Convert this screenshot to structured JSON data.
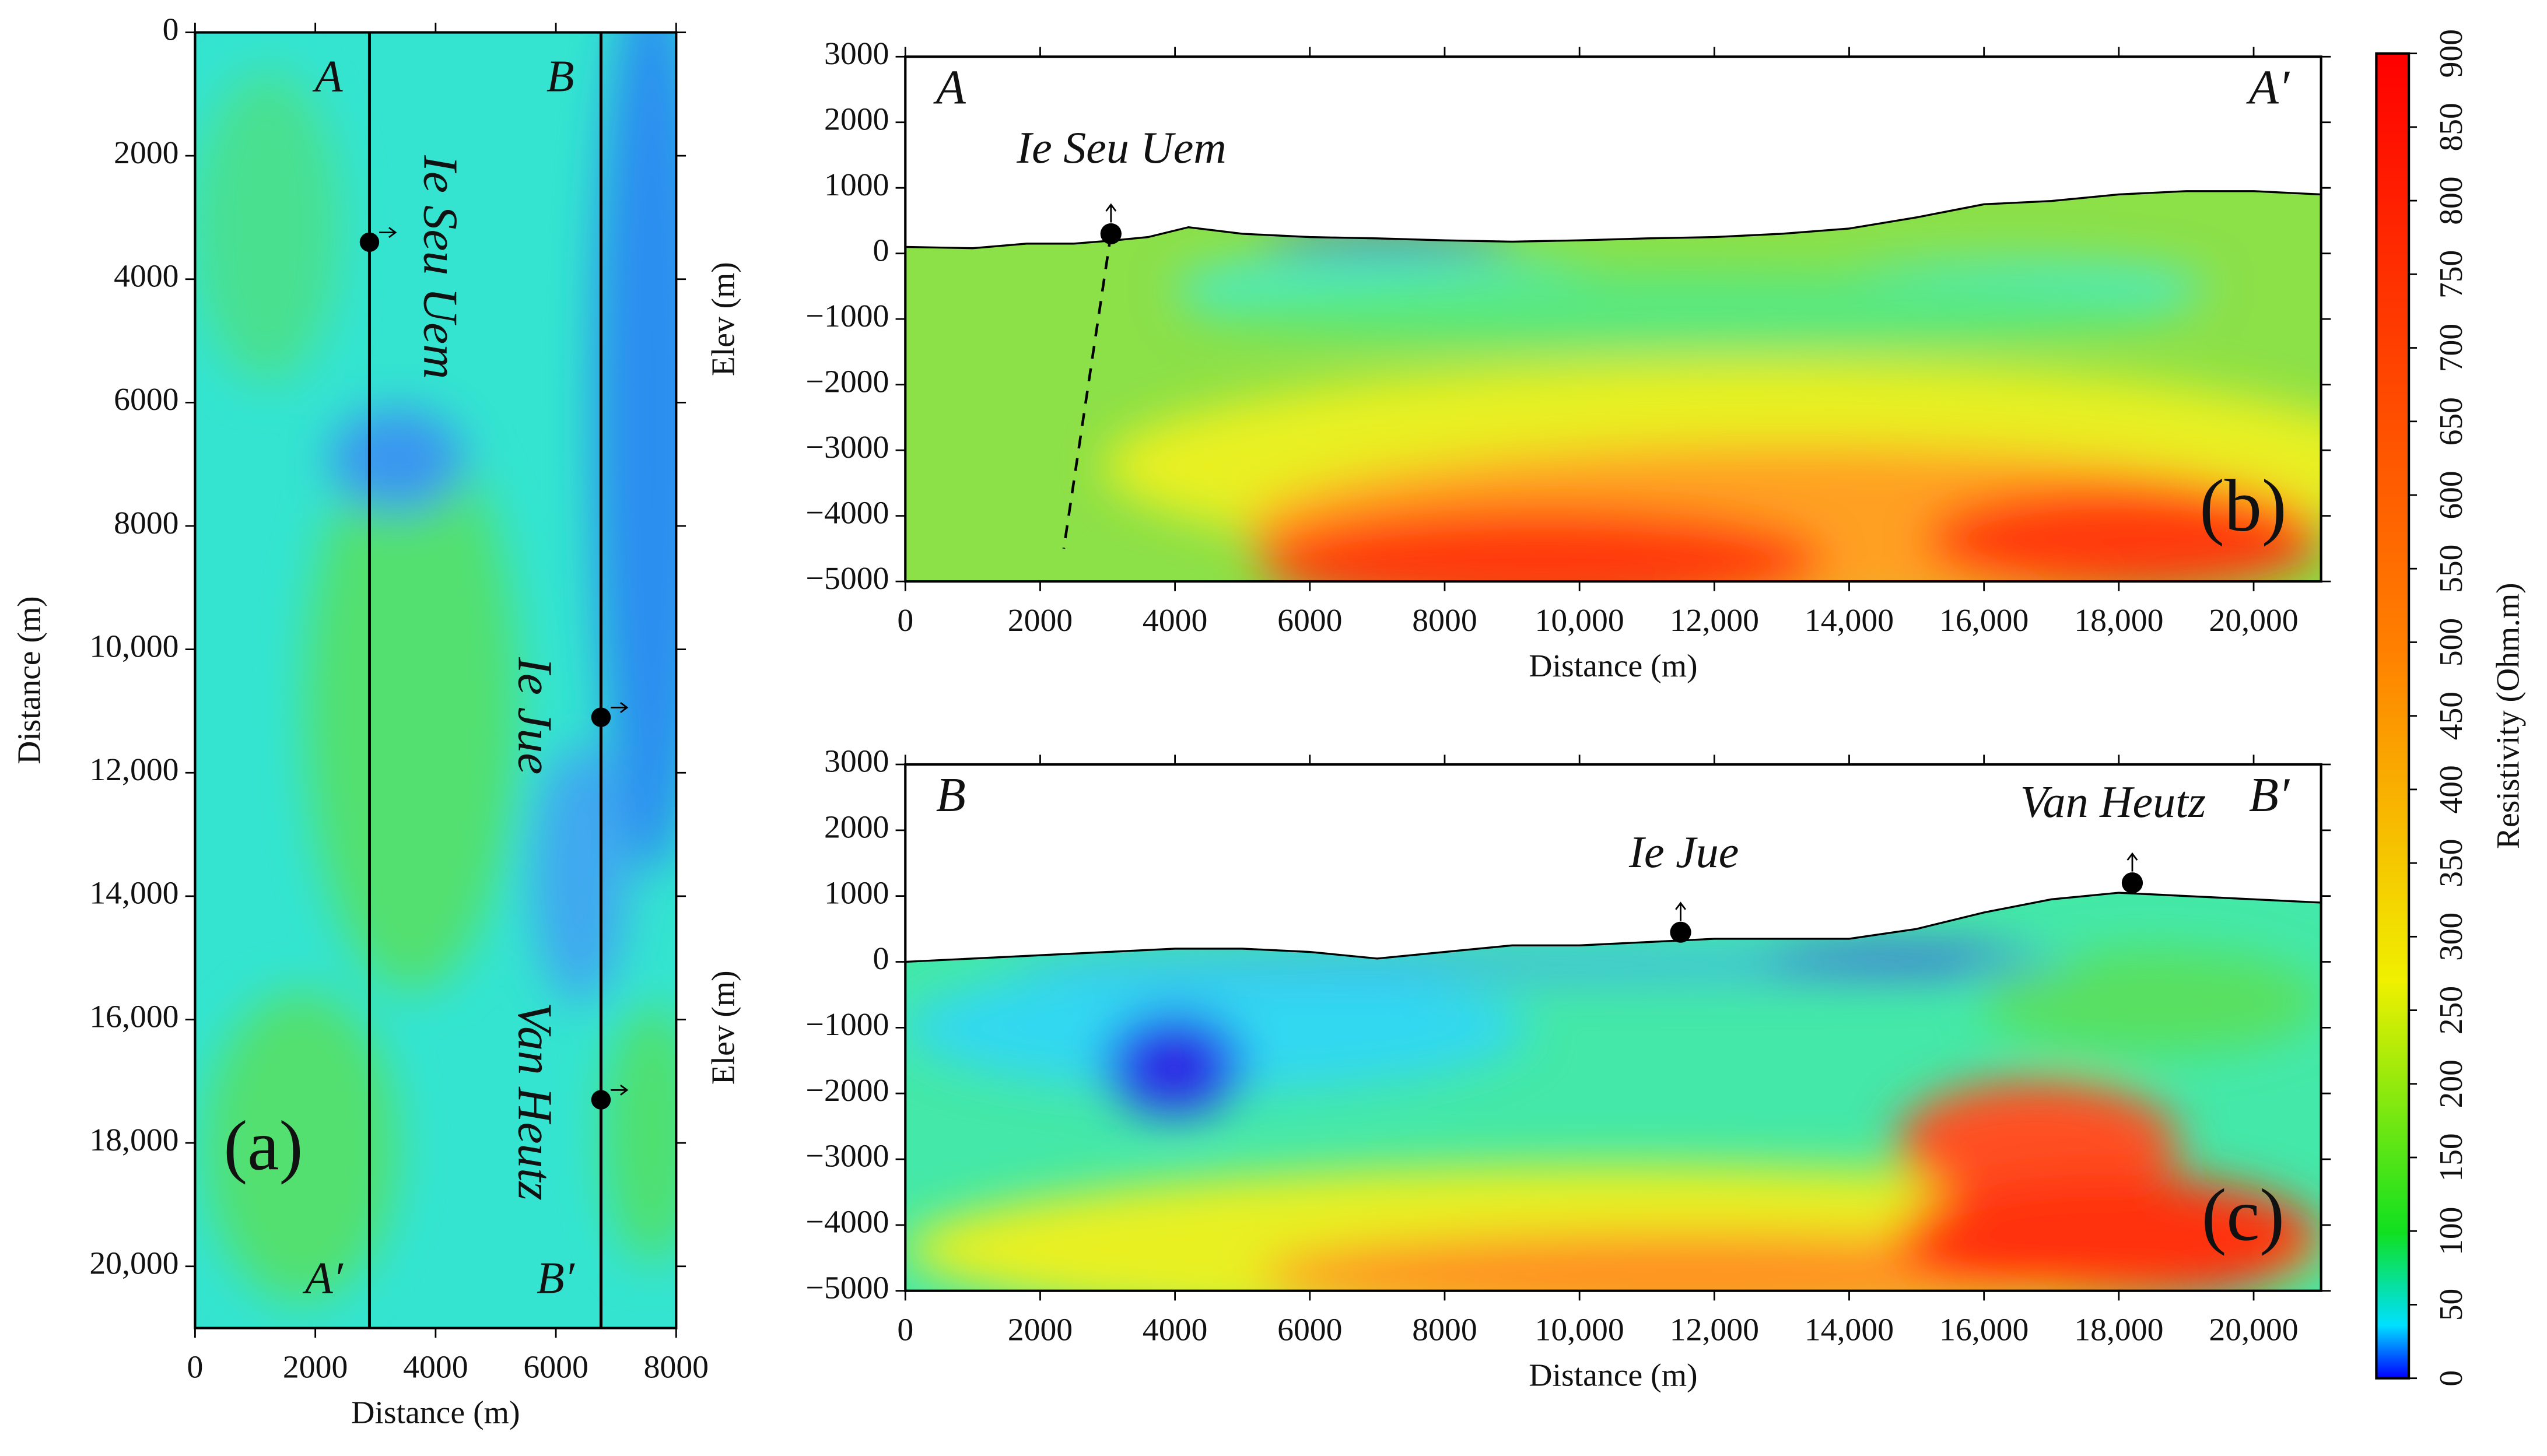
{
  "chart_data": [
    {
      "type": "map",
      "panel_label": "(a)",
      "xlabel": "Distance (m)",
      "ylabel": "Distance (m)",
      "xlim": [
        0,
        8000
      ],
      "ylim": [
        21000,
        0
      ],
      "xticks": [
        0,
        2000,
        4000,
        6000,
        8000
      ],
      "yticks": [
        0,
        2000,
        4000,
        6000,
        8000,
        {
          "value": 10000,
          "label": "10,000"
        },
        {
          "value": 12000,
          "label": "12,000"
        },
        {
          "value": 14000,
          "label": "14,000"
        },
        {
          "value": 16000,
          "label": "16,000"
        },
        {
          "value": 18000,
          "label": "18,000"
        },
        {
          "value": 20000,
          "label": "20,000"
        }
      ],
      "profiles": [
        {
          "start_label": "A",
          "end_label": "A′",
          "x": 2900
        },
        {
          "start_label": "B",
          "end_label": "B′",
          "x": 6750
        }
      ],
      "sites": [
        {
          "name": "Ie Seu Uem",
          "x": 2900,
          "y": 3400
        },
        {
          "name": "Ie Jue",
          "x": 6750,
          "y": 11100
        },
        {
          "name": "Van Heutz",
          "x": 6750,
          "y": 17300
        }
      ]
    },
    {
      "type": "section",
      "panel_label": "(b)",
      "start_label": "A",
      "end_label": "A′",
      "xlabel": "Distance (m)",
      "ylabel": "Elev (m)",
      "xlim": [
        0,
        21000
      ],
      "ylim": [
        -5000,
        3000
      ],
      "xticks": [
        0,
        2000,
        4000,
        6000,
        8000,
        {
          "value": 10000,
          "label": "10,000"
        },
        {
          "value": 12000,
          "label": "12,000"
        },
        {
          "value": 14000,
          "label": "14,000"
        },
        {
          "value": 16000,
          "label": "16,000"
        },
        {
          "value": 18000,
          "label": "18,000"
        },
        {
          "value": 20000,
          "label": "20,000"
        }
      ],
      "yticks": [
        3000,
        2000,
        1000,
        0,
        {
          "value": -1000,
          "label": "−1000"
        },
        {
          "value": -2000,
          "label": "−2000"
        },
        {
          "value": -3000,
          "label": "−3000"
        },
        {
          "value": -4000,
          "label": "−4000"
        },
        {
          "value": -5000,
          "label": "−5000"
        }
      ],
      "topography": {
        "x": [
          0,
          1000,
          1800,
          2500,
          3100,
          3600,
          4200,
          5000,
          6000,
          7000,
          8000,
          9000,
          10000,
          11000,
          12000,
          13000,
          14000,
          15000,
          15500,
          16000,
          17000,
          18000,
          19000,
          20000,
          21000
        ],
        "y": [
          100,
          80,
          150,
          150,
          200,
          250,
          400,
          300,
          250,
          230,
          200,
          180,
          200,
          230,
          250,
          300,
          380,
          550,
          650,
          750,
          800,
          900,
          950,
          950,
          900
        ]
      },
      "fault": {
        "x": [
          3050,
          2350
        ],
        "y": [
          300,
          -4500
        ]
      },
      "sites": [
        {
          "name": "Ie Seu Uem",
          "x": 3050,
          "y": 300
        }
      ]
    },
    {
      "type": "section",
      "panel_label": "(c)",
      "start_label": "B",
      "end_label": "B′",
      "xlabel": "Distance (m)",
      "ylabel": "Elev (m)",
      "xlim": [
        0,
        21000
      ],
      "ylim": [
        -5000,
        3000
      ],
      "xticks": [
        0,
        2000,
        4000,
        6000,
        8000,
        {
          "value": 10000,
          "label": "10,000"
        },
        {
          "value": 12000,
          "label": "12,000"
        },
        {
          "value": 14000,
          "label": "14,000"
        },
        {
          "value": 16000,
          "label": "16,000"
        },
        {
          "value": 18000,
          "label": "18,000"
        },
        {
          "value": 20000,
          "label": "20,000"
        }
      ],
      "yticks": [
        3000,
        2000,
        1000,
        0,
        {
          "value": -1000,
          "label": "−1000"
        },
        {
          "value": -2000,
          "label": "−2000"
        },
        {
          "value": -3000,
          "label": "−3000"
        },
        {
          "value": -4000,
          "label": "−4000"
        },
        {
          "value": -5000,
          "label": "−5000"
        }
      ],
      "topography": {
        "x": [
          0,
          2000,
          3000,
          4000,
          5000,
          6000,
          7000,
          8000,
          9000,
          10000,
          11000,
          12000,
          13000,
          14000,
          15000,
          16000,
          17000,
          18000,
          19000,
          20000,
          21000
        ],
        "y": [
          0,
          100,
          150,
          200,
          200,
          150,
          50,
          150,
          250,
          250,
          300,
          350,
          350,
          350,
          500,
          750,
          950,
          1050,
          1000,
          950,
          900
        ]
      },
      "sites": [
        {
          "name": "Ie Jue",
          "x": 11500,
          "y": 450
        },
        {
          "name": "Van Heutz",
          "x": 18200,
          "y": 1200
        }
      ]
    },
    {
      "type": "colorbar",
      "label": "Resistivity (Ohm.m)",
      "lim": [
        0,
        900
      ],
      "ticks": [
        0,
        50,
        100,
        150,
        200,
        250,
        300,
        350,
        400,
        450,
        500,
        550,
        600,
        650,
        700,
        750,
        800,
        850,
        900
      ]
    }
  ]
}
